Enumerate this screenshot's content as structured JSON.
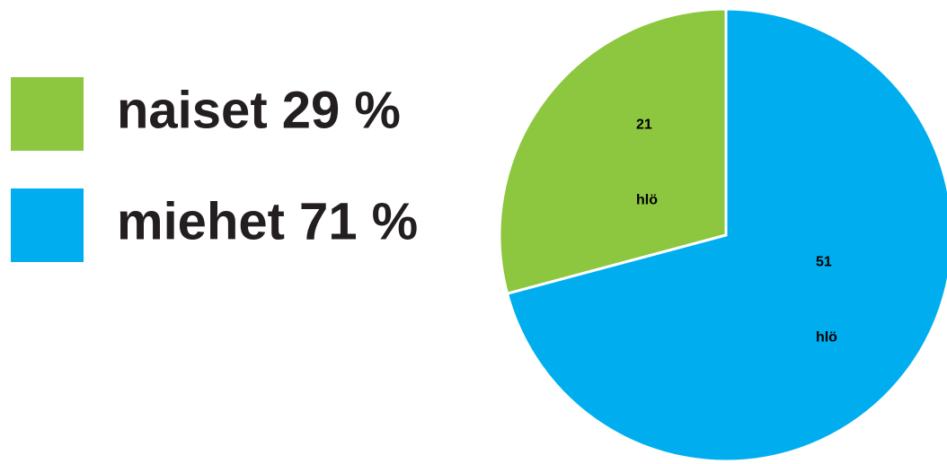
{
  "chart_data": {
    "type": "pie",
    "categories": [
      "naiset 29 %",
      "miehet 71 %"
    ],
    "values": [
      21,
      51
    ],
    "value_labels": [
      "21 hlö",
      "51 hlö"
    ],
    "colors": [
      "#8dc63f",
      "#00aeef"
    ]
  }
}
